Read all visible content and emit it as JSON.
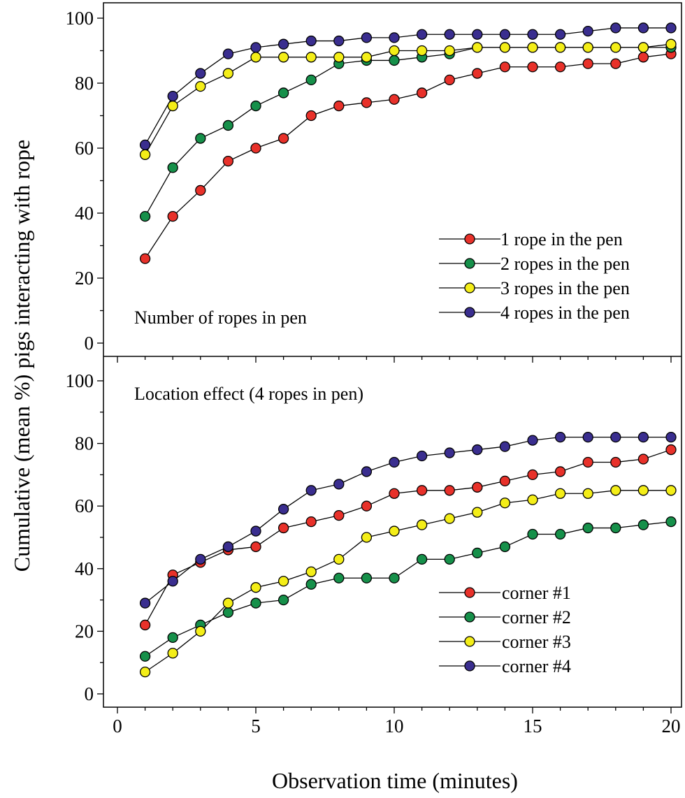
{
  "chart_data": {
    "type": "line",
    "ylabel": "Cumulative (mean %) pigs interacting with rope",
    "xlabel": "Observation time (minutes)",
    "x_ticks": [
      "0",
      "5",
      "10",
      "15",
      "20"
    ],
    "xlim": [
      0,
      20
    ],
    "grid": false,
    "panels": [
      {
        "title": "Number of ropes in pen",
        "ylim": [
          0,
          100
        ],
        "y_ticks": [
          "0",
          "20",
          "40",
          "60",
          "80",
          "100"
        ],
        "legend_position": "bottom-right",
        "x": [
          1,
          2,
          3,
          4,
          5,
          6,
          7,
          8,
          9,
          10,
          11,
          12,
          13,
          14,
          15,
          16,
          17,
          18,
          19,
          20
        ],
        "series": [
          {
            "name": "1 rope in the pen",
            "color": "#e8312a",
            "values": [
              26,
              39,
              47,
              56,
              60,
              63,
              70,
              73,
              74,
              75,
              77,
              81,
              83,
              85,
              85,
              85,
              86,
              86,
              88,
              89
            ]
          },
          {
            "name": "2 ropes in the pen",
            "color": "#16904a",
            "values": [
              39,
              54,
              63,
              67,
              73,
              77,
              81,
              86,
              87,
              87,
              88,
              89,
              91,
              91,
              91,
              91,
              91,
              91,
              91,
              91
            ]
          },
          {
            "name": "3 ropes in the pen",
            "color": "#f4ee18",
            "values": [
              58,
              73,
              79,
              83,
              88,
              88,
              88,
              88,
              88,
              90,
              90,
              90,
              91,
              91,
              91,
              91,
              91,
              91,
              91,
              92
            ]
          },
          {
            "name": "4 ropes in the pen",
            "color": "#3a2e8f",
            "values": [
              61,
              76,
              83,
              89,
              91,
              92,
              93,
              93,
              94,
              94,
              95,
              95,
              95,
              95,
              95,
              95,
              96,
              97,
              97,
              97
            ]
          }
        ]
      },
      {
        "title": "Location effect (4 ropes in pen)",
        "ylim": [
          0,
          100
        ],
        "y_ticks": [
          "0",
          "20",
          "40",
          "60",
          "80",
          "100"
        ],
        "legend_position": "bottom-right",
        "x": [
          1,
          2,
          3,
          4,
          5,
          6,
          7,
          8,
          9,
          10,
          11,
          12,
          13,
          14,
          15,
          16,
          17,
          18,
          19,
          20
        ],
        "series": [
          {
            "name": "corner #1",
            "color": "#e8312a",
            "values": [
              22,
              38,
              42,
              46,
              47,
              53,
              55,
              57,
              60,
              64,
              65,
              65,
              66,
              68,
              70,
              71,
              74,
              74,
              75,
              78
            ]
          },
          {
            "name": "corner #2",
            "color": "#16904a",
            "values": [
              12,
              18,
              22,
              26,
              29,
              30,
              35,
              37,
              37,
              37,
              43,
              43,
              45,
              47,
              51,
              51,
              53,
              53,
              54,
              55
            ]
          },
          {
            "name": "corner #3",
            "color": "#f4ee18",
            "values": [
              7,
              13,
              20,
              29,
              34,
              36,
              39,
              43,
              50,
              52,
              54,
              56,
              58,
              61,
              62,
              64,
              64,
              65,
              65,
              65
            ]
          },
          {
            "name": "corner #4",
            "color": "#3a2e8f",
            "values": [
              29,
              36,
              43,
              47,
              52,
              59,
              65,
              67,
              71,
              74,
              76,
              77,
              78,
              79,
              81,
              82,
              82,
              82,
              82,
              82
            ]
          }
        ]
      }
    ]
  }
}
